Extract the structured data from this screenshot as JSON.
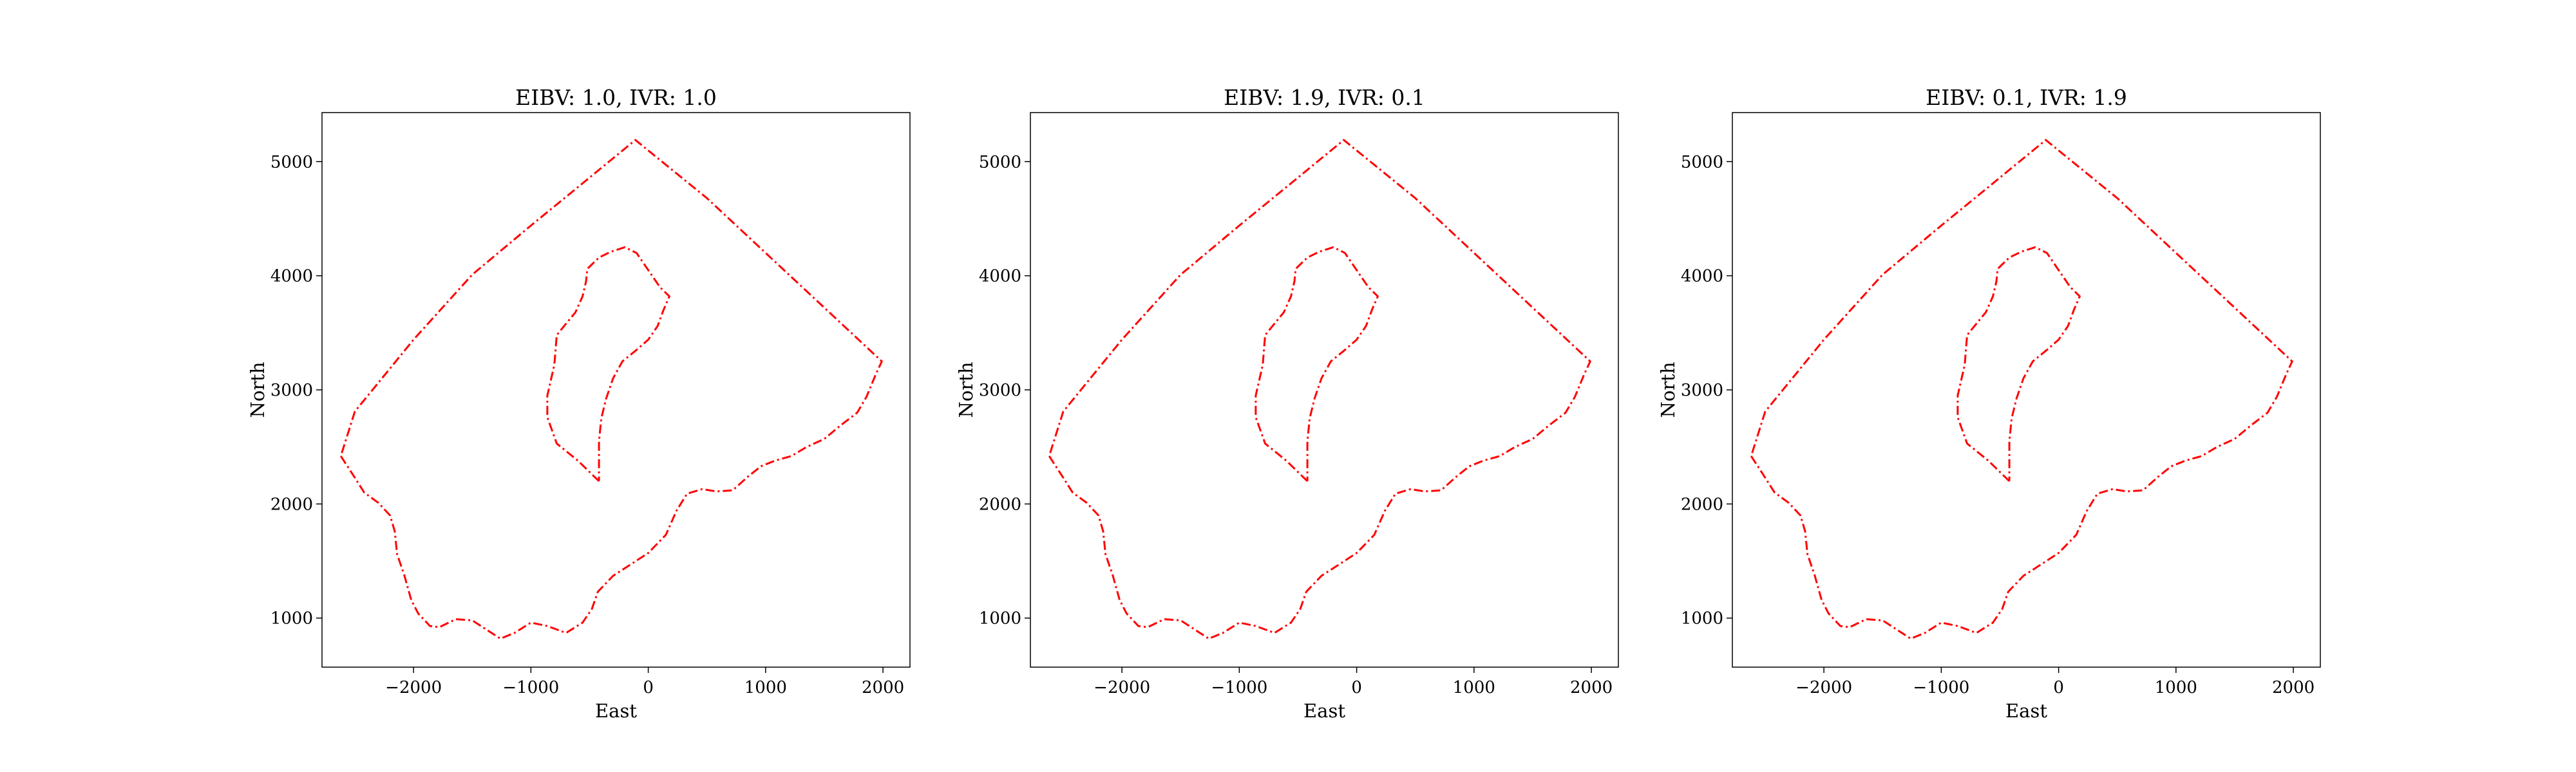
{
  "chart_data": [
    {
      "type": "line",
      "title": "EIBV: 1.0, IVR: 1.0",
      "xlabel": "East",
      "ylabel": "North",
      "xlim": [
        -2780,
        2230
      ],
      "ylim": [
        570,
        5430
      ],
      "x_ticks": [
        -2000,
        -1000,
        0,
        1000,
        2000
      ],
      "x_tick_labels": [
        "−2000",
        "−1000",
        "0",
        "1000",
        "2000"
      ],
      "y_ticks": [
        1000,
        2000,
        3000,
        4000,
        5000
      ],
      "y_tick_labels": [
        "1000",
        "2000",
        "3000",
        "4000",
        "5000"
      ],
      "grid": false,
      "line_style": "dash-dot",
      "line_color": "#ff0000",
      "series": [
        {
          "points": [
            [
              -2620,
              2420
            ],
            [
              -2500,
              2230
            ],
            [
              -2420,
              2100
            ],
            [
              -2300,
              2010
            ],
            [
              -2200,
              1900
            ],
            [
              -2160,
              1760
            ],
            [
              -2140,
              1560
            ],
            [
              -2080,
              1380
            ],
            [
              -2020,
              1160
            ],
            [
              -1960,
              1040
            ],
            [
              -1860,
              930
            ],
            [
              -1780,
              920
            ],
            [
              -1640,
              990
            ],
            [
              -1500,
              980
            ],
            [
              -1380,
              900
            ],
            [
              -1260,
              820
            ],
            [
              -1140,
              870
            ],
            [
              -1000,
              960
            ],
            [
              -860,
              930
            ],
            [
              -700,
              870
            ],
            [
              -560,
              960
            ],
            [
              -480,
              1080
            ],
            [
              -430,
              1230
            ],
            [
              -300,
              1370
            ],
            [
              -150,
              1470
            ],
            [
              0,
              1570
            ],
            [
              150,
              1730
            ],
            [
              240,
              1940
            ],
            [
              330,
              2090
            ],
            [
              460,
              2130
            ],
            [
              580,
              2110
            ],
            [
              720,
              2120
            ],
            [
              850,
              2240
            ],
            [
              960,
              2330
            ],
            [
              1080,
              2380
            ],
            [
              1220,
              2420
            ],
            [
              1350,
              2500
            ],
            [
              1500,
              2570
            ],
            [
              1640,
              2690
            ],
            [
              1780,
              2800
            ],
            [
              1860,
              2940
            ],
            [
              1940,
              3140
            ],
            [
              1990,
              3250
            ],
            [
              1500,
              3720
            ],
            [
              1000,
              4200
            ],
            [
              500,
              4680
            ],
            [
              -110,
              5190
            ],
            [
              -560,
              4810
            ],
            [
              -1000,
              4440
            ],
            [
              -1500,
              4010
            ],
            [
              -2000,
              3440
            ],
            [
              -2500,
              2810
            ],
            [
              -2620,
              2420
            ]
          ]
        },
        {
          "points": [
            [
              -420,
              2200
            ],
            [
              -600,
              2380
            ],
            [
              -780,
              2530
            ],
            [
              -860,
              2760
            ],
            [
              -860,
              2950
            ],
            [
              -800,
              3220
            ],
            [
              -780,
              3480
            ],
            [
              -700,
              3580
            ],
            [
              -620,
              3680
            ],
            [
              -560,
              3820
            ],
            [
              -530,
              3950
            ],
            [
              -520,
              4060
            ],
            [
              -420,
              4160
            ],
            [
              -320,
              4210
            ],
            [
              -200,
              4250
            ],
            [
              -100,
              4200
            ],
            [
              0,
              4050
            ],
            [
              100,
              3900
            ],
            [
              180,
              3820
            ],
            [
              130,
              3700
            ],
            [
              80,
              3560
            ],
            [
              0,
              3440
            ],
            [
              -100,
              3350
            ],
            [
              -220,
              3250
            ],
            [
              -300,
              3100
            ],
            [
              -360,
              2920
            ],
            [
              -400,
              2750
            ],
            [
              -420,
              2550
            ],
            [
              -420,
              2200
            ]
          ]
        }
      ]
    },
    {
      "type": "line",
      "title": "EIBV: 1.9, IVR: 0.1",
      "xlabel": "East",
      "ylabel": "North",
      "xlim": [
        -2780,
        2230
      ],
      "ylim": [
        570,
        5430
      ],
      "x_ticks": [
        -2000,
        -1000,
        0,
        1000,
        2000
      ],
      "x_tick_labels": [
        "−2000",
        "−1000",
        "0",
        "1000",
        "2000"
      ],
      "y_ticks": [
        1000,
        2000,
        3000,
        4000,
        5000
      ],
      "y_tick_labels": [
        "1000",
        "2000",
        "3000",
        "4000",
        "5000"
      ],
      "grid": false,
      "line_style": "dash-dot",
      "line_color": "#ff0000",
      "series": [
        {
          "points": [
            [
              -2620,
              2420
            ],
            [
              -2500,
              2230
            ],
            [
              -2420,
              2100
            ],
            [
              -2300,
              2010
            ],
            [
              -2200,
              1900
            ],
            [
              -2160,
              1760
            ],
            [
              -2140,
              1560
            ],
            [
              -2080,
              1380
            ],
            [
              -2020,
              1160
            ],
            [
              -1960,
              1040
            ],
            [
              -1860,
              930
            ],
            [
              -1780,
              920
            ],
            [
              -1640,
              990
            ],
            [
              -1500,
              980
            ],
            [
              -1380,
              900
            ],
            [
              -1260,
              820
            ],
            [
              -1140,
              870
            ],
            [
              -1000,
              960
            ],
            [
              -860,
              930
            ],
            [
              -700,
              870
            ],
            [
              -560,
              960
            ],
            [
              -480,
              1080
            ],
            [
              -430,
              1230
            ],
            [
              -300,
              1370
            ],
            [
              -150,
              1470
            ],
            [
              0,
              1570
            ],
            [
              150,
              1730
            ],
            [
              240,
              1940
            ],
            [
              330,
              2090
            ],
            [
              460,
              2130
            ],
            [
              580,
              2110
            ],
            [
              720,
              2120
            ],
            [
              850,
              2240
            ],
            [
              960,
              2330
            ],
            [
              1080,
              2380
            ],
            [
              1220,
              2420
            ],
            [
              1350,
              2500
            ],
            [
              1500,
              2570
            ],
            [
              1640,
              2690
            ],
            [
              1780,
              2800
            ],
            [
              1860,
              2940
            ],
            [
              1940,
              3140
            ],
            [
              1990,
              3250
            ],
            [
              1500,
              3720
            ],
            [
              1000,
              4200
            ],
            [
              500,
              4680
            ],
            [
              -110,
              5190
            ],
            [
              -560,
              4810
            ],
            [
              -1000,
              4440
            ],
            [
              -1500,
              4010
            ],
            [
              -2000,
              3440
            ],
            [
              -2500,
              2810
            ],
            [
              -2620,
              2420
            ]
          ]
        },
        {
          "points": [
            [
              -420,
              2200
            ],
            [
              -600,
              2380
            ],
            [
              -780,
              2530
            ],
            [
              -860,
              2760
            ],
            [
              -860,
              2950
            ],
            [
              -800,
              3220
            ],
            [
              -780,
              3480
            ],
            [
              -700,
              3580
            ],
            [
              -620,
              3680
            ],
            [
              -560,
              3820
            ],
            [
              -530,
              3950
            ],
            [
              -520,
              4060
            ],
            [
              -420,
              4160
            ],
            [
              -320,
              4210
            ],
            [
              -200,
              4250
            ],
            [
              -100,
              4200
            ],
            [
              0,
              4050
            ],
            [
              100,
              3900
            ],
            [
              180,
              3820
            ],
            [
              130,
              3700
            ],
            [
              80,
              3560
            ],
            [
              0,
              3440
            ],
            [
              -100,
              3350
            ],
            [
              -220,
              3250
            ],
            [
              -300,
              3100
            ],
            [
              -360,
              2920
            ],
            [
              -400,
              2750
            ],
            [
              -420,
              2550
            ],
            [
              -420,
              2200
            ]
          ]
        }
      ]
    },
    {
      "type": "line",
      "title": "EIBV: 0.1, IVR: 1.9",
      "xlabel": "East",
      "ylabel": "North",
      "xlim": [
        -2780,
        2230
      ],
      "ylim": [
        570,
        5430
      ],
      "x_ticks": [
        -2000,
        -1000,
        0,
        1000,
        2000
      ],
      "x_tick_labels": [
        "−2000",
        "−1000",
        "0",
        "1000",
        "2000"
      ],
      "y_ticks": [
        1000,
        2000,
        3000,
        4000,
        5000
      ],
      "y_tick_labels": [
        "1000",
        "2000",
        "3000",
        "4000",
        "5000"
      ],
      "grid": false,
      "line_style": "dash-dot",
      "line_color": "#ff0000",
      "series": [
        {
          "points": [
            [
              -2620,
              2420
            ],
            [
              -2500,
              2230
            ],
            [
              -2420,
              2100
            ],
            [
              -2300,
              2010
            ],
            [
              -2200,
              1900
            ],
            [
              -2160,
              1760
            ],
            [
              -2140,
              1560
            ],
            [
              -2080,
              1380
            ],
            [
              -2020,
              1160
            ],
            [
              -1960,
              1040
            ],
            [
              -1860,
              930
            ],
            [
              -1780,
              920
            ],
            [
              -1640,
              990
            ],
            [
              -1500,
              980
            ],
            [
              -1380,
              900
            ],
            [
              -1260,
              820
            ],
            [
              -1140,
              870
            ],
            [
              -1000,
              960
            ],
            [
              -860,
              930
            ],
            [
              -700,
              870
            ],
            [
              -560,
              960
            ],
            [
              -480,
              1080
            ],
            [
              -430,
              1230
            ],
            [
              -300,
              1370
            ],
            [
              -150,
              1470
            ],
            [
              0,
              1570
            ],
            [
              150,
              1730
            ],
            [
              240,
              1940
            ],
            [
              330,
              2090
            ],
            [
              460,
              2130
            ],
            [
              580,
              2110
            ],
            [
              720,
              2120
            ],
            [
              850,
              2240
            ],
            [
              960,
              2330
            ],
            [
              1080,
              2380
            ],
            [
              1220,
              2420
            ],
            [
              1350,
              2500
            ],
            [
              1500,
              2570
            ],
            [
              1640,
              2690
            ],
            [
              1780,
              2800
            ],
            [
              1860,
              2940
            ],
            [
              1940,
              3140
            ],
            [
              1990,
              3250
            ],
            [
              1500,
              3720
            ],
            [
              1000,
              4200
            ],
            [
              500,
              4680
            ],
            [
              -110,
              5190
            ],
            [
              -560,
              4810
            ],
            [
              -1000,
              4440
            ],
            [
              -1500,
              4010
            ],
            [
              -2000,
              3440
            ],
            [
              -2500,
              2810
            ],
            [
              -2620,
              2420
            ]
          ]
        },
        {
          "points": [
            [
              -420,
              2200
            ],
            [
              -600,
              2380
            ],
            [
              -780,
              2530
            ],
            [
              -860,
              2760
            ],
            [
              -860,
              2950
            ],
            [
              -800,
              3220
            ],
            [
              -780,
              3480
            ],
            [
              -700,
              3580
            ],
            [
              -620,
              3680
            ],
            [
              -560,
              3820
            ],
            [
              -530,
              3950
            ],
            [
              -520,
              4060
            ],
            [
              -420,
              4160
            ],
            [
              -320,
              4210
            ],
            [
              -200,
              4250
            ],
            [
              -100,
              4200
            ],
            [
              0,
              4050
            ],
            [
              100,
              3900
            ],
            [
              180,
              3820
            ],
            [
              130,
              3700
            ],
            [
              80,
              3560
            ],
            [
              0,
              3440
            ],
            [
              -100,
              3350
            ],
            [
              -220,
              3250
            ],
            [
              -300,
              3100
            ],
            [
              -360,
              2920
            ],
            [
              -400,
              2750
            ],
            [
              -420,
              2550
            ],
            [
              -420,
              2200
            ]
          ]
        }
      ]
    }
  ]
}
